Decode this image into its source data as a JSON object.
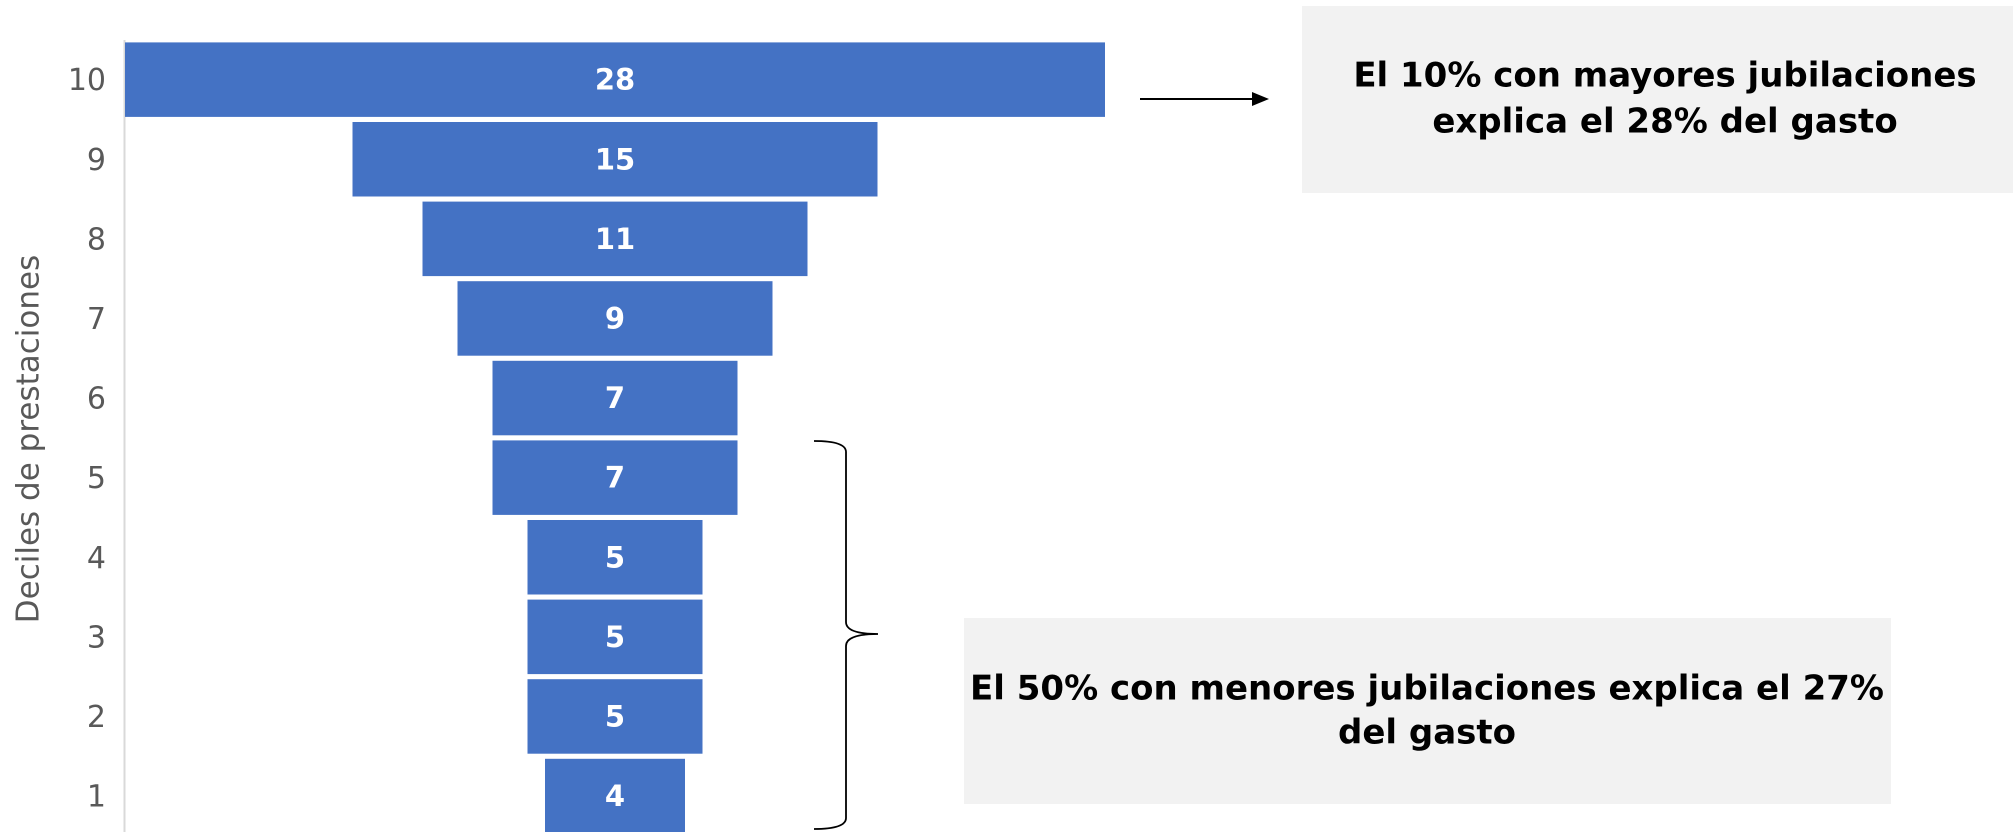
{
  "chart_data": {
    "type": "funnel",
    "y_label": "Deciles de prestaciones",
    "categories": [
      "10",
      "9",
      "8",
      "7",
      "6",
      "5",
      "4",
      "3",
      "2",
      "1"
    ],
    "values": [
      28,
      15,
      11,
      9,
      7,
      7,
      5,
      5,
      5,
      4
    ],
    "color": "#4472c4",
    "annotations": [
      {
        "lines": [
          "El 10% con mayores jubilaciones",
          "explica el 28% del gasto"
        ]
      },
      {
        "lines": [
          "El 50% con menores jubilaciones explica el 27%",
          "del gasto"
        ]
      }
    ]
  }
}
